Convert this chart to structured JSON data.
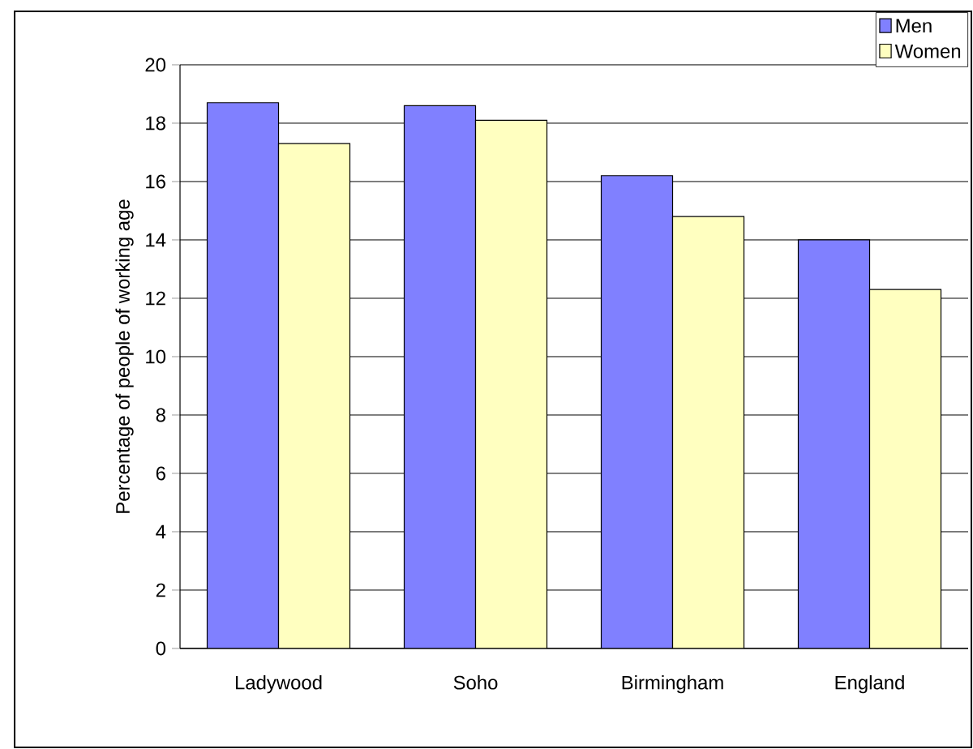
{
  "chart_data": {
    "type": "bar",
    "ylabel": "Percentage of people of working age",
    "categories": [
      "Ladywood",
      "Soho",
      "Birmingham",
      "England"
    ],
    "series": [
      {
        "name": "Men",
        "color": "#8080ff",
        "values": [
          18.7,
          18.6,
          16.2,
          14.0
        ]
      },
      {
        "name": "Women",
        "color": "#ffffc0",
        "values": [
          17.3,
          18.1,
          14.8,
          12.3
        ]
      }
    ],
    "ylim": [
      0,
      20
    ],
    "yticks": [
      0,
      2,
      4,
      6,
      8,
      10,
      12,
      14,
      16,
      18,
      20
    ],
    "grid": "y",
    "legend": "top right"
  }
}
